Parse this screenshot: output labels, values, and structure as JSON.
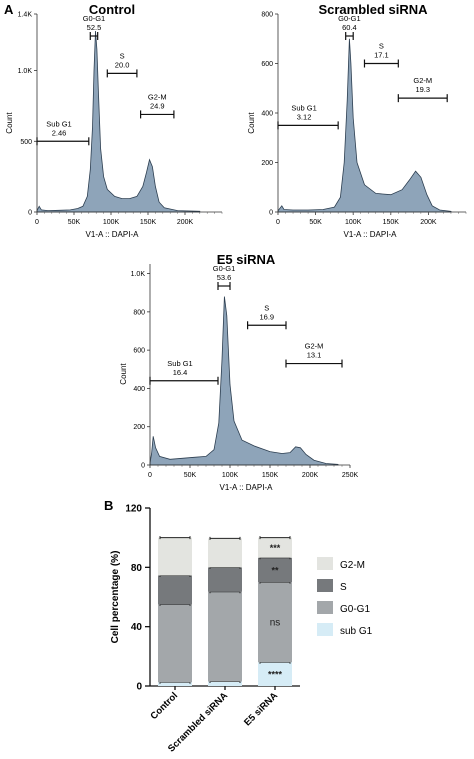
{
  "panel_labels": {
    "a": "A",
    "b": "B"
  },
  "chart_data": [
    {
      "type": "area",
      "title": "Control",
      "xlabel": "V1-A :: DAPI-A",
      "ylabel": "Count",
      "xlim": [
        0,
        250000
      ],
      "ylim": [
        0,
        1400
      ],
      "x_ticks": [
        0,
        50000,
        100000,
        150000,
        200000
      ],
      "x_tick_labels": [
        "0",
        "50K",
        "100K",
        "150K",
        "200K"
      ],
      "y_ticks": [
        0,
        500,
        1000,
        1400
      ],
      "y_tick_labels": [
        "0",
        "500",
        "1.0K",
        "1.4K"
      ],
      "histogram": [
        [
          0,
          10
        ],
        [
          3000,
          40
        ],
        [
          6000,
          15
        ],
        [
          15000,
          10
        ],
        [
          30000,
          12
        ],
        [
          45000,
          15
        ],
        [
          55000,
          25
        ],
        [
          62000,
          40
        ],
        [
          68000,
          110
        ],
        [
          72000,
          300
        ],
        [
          75000,
          600
        ],
        [
          77000,
          1000
        ],
        [
          79000,
          1280
        ],
        [
          81000,
          1150
        ],
        [
          83000,
          850
        ],
        [
          86000,
          450
        ],
        [
          90000,
          250
        ],
        [
          95000,
          160
        ],
        [
          105000,
          110
        ],
        [
          115000,
          95
        ],
        [
          125000,
          95
        ],
        [
          135000,
          110
        ],
        [
          143000,
          180
        ],
        [
          148000,
          280
        ],
        [
          152000,
          370
        ],
        [
          156000,
          320
        ],
        [
          160000,
          180
        ],
        [
          165000,
          70
        ],
        [
          172000,
          30
        ],
        [
          190000,
          10
        ],
        [
          220000,
          5
        ]
      ],
      "gates": [
        {
          "name": "Sub G1",
          "value": "2.46",
          "x_range": [
            0,
            70000
          ],
          "y": 500
        },
        {
          "name": "G0-G1",
          "value": "52.5",
          "x_range": [
            72000,
            82000
          ],
          "y": 1500
        },
        {
          "name": "S",
          "value": "20.0",
          "x_range": [
            95000,
            135000
          ],
          "y": 980
        },
        {
          "name": "G2-M",
          "value": "24.9",
          "x_range": [
            140000,
            185000
          ],
          "y": 690
        }
      ]
    },
    {
      "type": "area",
      "title": "Scrambled siRNA",
      "xlabel": "V1-A :: DAPI-A",
      "ylabel": "Count",
      "xlim": [
        0,
        250000
      ],
      "ylim": [
        0,
        800
      ],
      "x_ticks": [
        0,
        50000,
        100000,
        150000,
        200000
      ],
      "x_tick_labels": [
        "0",
        "50K",
        "100K",
        "150K",
        "200K"
      ],
      "y_ticks": [
        0,
        200,
        400,
        600,
        800
      ],
      "y_tick_labels": [
        "0",
        "200",
        "400",
        "600",
        "800"
      ],
      "histogram": [
        [
          0,
          5
        ],
        [
          5000,
          25
        ],
        [
          8000,
          10
        ],
        [
          20000,
          8
        ],
        [
          40000,
          8
        ],
        [
          60000,
          10
        ],
        [
          75000,
          20
        ],
        [
          83000,
          60
        ],
        [
          88000,
          200
        ],
        [
          92000,
          450
        ],
        [
          95000,
          700
        ],
        [
          97000,
          600
        ],
        [
          100000,
          380
        ],
        [
          105000,
          200
        ],
        [
          115000,
          110
        ],
        [
          130000,
          75
        ],
        [
          150000,
          70
        ],
        [
          165000,
          90
        ],
        [
          175000,
          130
        ],
        [
          183000,
          165
        ],
        [
          190000,
          140
        ],
        [
          198000,
          70
        ],
        [
          205000,
          25
        ],
        [
          215000,
          8
        ],
        [
          230000,
          3
        ]
      ],
      "gates": [
        {
          "name": "Sub G1",
          "value": "3.12",
          "x_range": [
            0,
            80000
          ],
          "y": 350
        },
        {
          "name": "G0-G1",
          "value": "60.4",
          "x_range": [
            90000,
            100000
          ],
          "y": 830
        },
        {
          "name": "S",
          "value": "17.1",
          "x_range": [
            115000,
            160000
          ],
          "y": 600
        },
        {
          "name": "G2-M",
          "value": "19.3",
          "x_range": [
            160000,
            225000
          ],
          "y": 460
        }
      ]
    },
    {
      "type": "area",
      "title": "E5 siRNA",
      "xlabel": "V1-A :: DAPI-A",
      "ylabel": "Count",
      "xlim": [
        0,
        250000
      ],
      "ylim": [
        0,
        1050
      ],
      "x_ticks": [
        0,
        50000,
        100000,
        150000,
        200000,
        250000
      ],
      "x_tick_labels": [
        "0",
        "50K",
        "100K",
        "150K",
        "200K",
        "250K"
      ],
      "y_ticks": [
        0,
        200,
        400,
        600,
        800,
        1000
      ],
      "y_tick_labels": [
        "0",
        "200",
        "400",
        "600",
        "800",
        "1.0K"
      ],
      "histogram": [
        [
          0,
          10
        ],
        [
          2000,
          60
        ],
        [
          4000,
          150
        ],
        [
          7000,
          90
        ],
        [
          12000,
          45
        ],
        [
          25000,
          30
        ],
        [
          40000,
          35
        ],
        [
          55000,
          40
        ],
        [
          70000,
          45
        ],
        [
          80000,
          80
        ],
        [
          86000,
          220
        ],
        [
          90000,
          550
        ],
        [
          93000,
          880
        ],
        [
          96000,
          780
        ],
        [
          100000,
          420
        ],
        [
          105000,
          230
        ],
        [
          115000,
          130
        ],
        [
          130000,
          100
        ],
        [
          150000,
          70
        ],
        [
          165000,
          60
        ],
        [
          175000,
          65
        ],
        [
          182000,
          95
        ],
        [
          188000,
          90
        ],
        [
          195000,
          55
        ],
        [
          205000,
          25
        ],
        [
          220000,
          8
        ],
        [
          235000,
          3
        ]
      ],
      "gates": [
        {
          "name": "Sub G1",
          "value": "16.4",
          "x_range": [
            0,
            85000
          ],
          "y": 440
        },
        {
          "name": "G0-G1",
          "value": "53.6",
          "x_range": [
            85000,
            100000
          ],
          "y": 1040
        },
        {
          "name": "S",
          "value": "16.9",
          "x_range": [
            122000,
            170000
          ],
          "y": 730
        },
        {
          "name": "G2-M",
          "value": "13.1",
          "x_range": [
            170000,
            240000
          ],
          "y": 530
        }
      ]
    },
    {
      "type": "bar",
      "stacked": true,
      "xlabel": "",
      "ylabel": "Cell percentage (%)",
      "ylim": [
        0,
        120
      ],
      "y_ticks": [
        0,
        40,
        80,
        120
      ],
      "y_tick_labels": [
        "0",
        "40",
        "80",
        "120"
      ],
      "categories": [
        "Control",
        "Scrambled siRNA",
        "E5 siRNA"
      ],
      "series": [
        {
          "name": "sub G1",
          "color": "#d6ecf6",
          "values": [
            2.5,
            3,
            16
          ]
        },
        {
          "name": "G0-G1",
          "color": "#a3a7aa",
          "values": [
            52.5,
            60.5,
            54
          ]
        },
        {
          "name": "S",
          "color": "#76797c",
          "values": [
            19.5,
            16.5,
            16.5
          ]
        },
        {
          "name": "G2-M",
          "color": "#e3e4e0",
          "values": [
            25.5,
            19.5,
            13.5
          ]
        }
      ],
      "legend_position": "right",
      "legend_order": [
        "G2-M",
        "S",
        "G0-G1",
        "sub G1"
      ],
      "annotations": [
        {
          "category": "E5 siRNA",
          "series": "G2-M",
          "text": "***"
        },
        {
          "category": "E5 siRNA",
          "series": "S",
          "text": "**"
        },
        {
          "category": "E5 siRNA",
          "series": "G0-G1",
          "text": "ns"
        },
        {
          "category": "E5 siRNA",
          "series": "sub G1",
          "text": "****"
        }
      ]
    }
  ]
}
